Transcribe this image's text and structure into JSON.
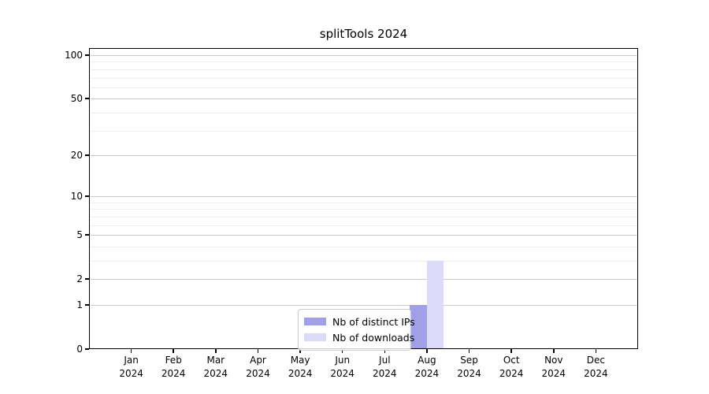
{
  "chart_data": {
    "type": "bar",
    "title": "splitTools 2024",
    "categories": [
      "Jan",
      "Feb",
      "Mar",
      "Apr",
      "May",
      "Jun",
      "Jul",
      "Aug",
      "Sep",
      "Oct",
      "Nov",
      "Dec"
    ],
    "x_year_label": "2024",
    "series": [
      {
        "name": "Nb of distinct IPs",
        "color": "#a0a0e8",
        "values": [
          0,
          0,
          0,
          0,
          0,
          0,
          0,
          1,
          0,
          0,
          0,
          0
        ]
      },
      {
        "name": "Nb of downloads",
        "color": "#dbdbf8",
        "values": [
          0,
          0,
          0,
          0,
          0,
          0,
          0,
          3,
          0,
          0,
          0,
          0
        ]
      }
    ],
    "y_axis": {
      "scale": "log1p",
      "major_ticks": [
        0,
        1,
        2,
        5,
        10,
        20,
        50,
        100
      ],
      "minor_gridlines": [
        1,
        2,
        3,
        4,
        5,
        6,
        7,
        8,
        9,
        10,
        20,
        30,
        40,
        50,
        60,
        70,
        80,
        90,
        100
      ],
      "range_max": 100
    },
    "legend": {
      "position": "bottom-center",
      "entries": [
        "Nb of distinct IPs",
        "Nb of downloads"
      ]
    },
    "grid": true,
    "colors": {
      "axis": "#000000",
      "major_grid": "#c9c9c9",
      "minor_grid": "#ececec",
      "background": "#ffffff",
      "text": "#000000"
    }
  }
}
